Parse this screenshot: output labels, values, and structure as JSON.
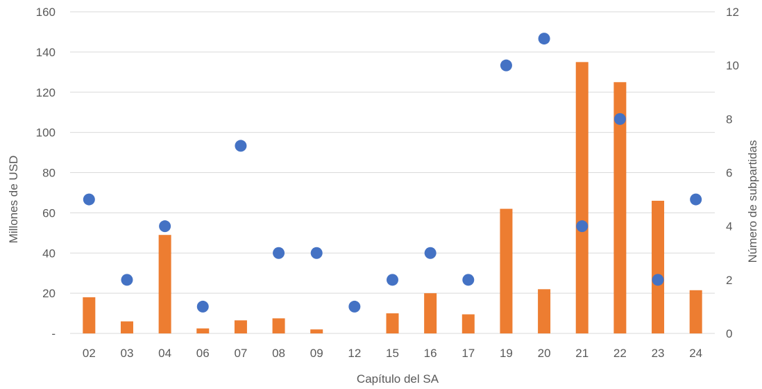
{
  "chart_data": {
    "type": "bar",
    "categories": [
      "02",
      "03",
      "04",
      "06",
      "07",
      "08",
      "09",
      "12",
      "15",
      "16",
      "17",
      "19",
      "20",
      "21",
      "22",
      "23",
      "24"
    ],
    "series": [
      {
        "type": "bar",
        "axis": "left",
        "color": "#ED7D31",
        "values": [
          18,
          6,
          49,
          2.5,
          6.5,
          7.5,
          2,
          0,
          10,
          20,
          9.5,
          62,
          22,
          135,
          125,
          66,
          21.5
        ]
      },
      {
        "type": "scatter",
        "axis": "right",
        "color": "#4472C4",
        "values": [
          5,
          2,
          4,
          1,
          7,
          3,
          3,
          1,
          2,
          3,
          2,
          10,
          11,
          4,
          8,
          2,
          5
        ]
      }
    ],
    "xlabel": "Capítulo del SA",
    "ylabel": "Millones de USD",
    "y2label": "Número de subpartidas",
    "ylim": [
      0,
      160
    ],
    "y2lim": [
      0,
      12
    ],
    "yticks": [
      "-",
      "20",
      "40",
      "60",
      "80",
      "100",
      "120",
      "140",
      "160"
    ],
    "y2ticks": [
      "0",
      "2",
      "4",
      "6",
      "8",
      "10",
      "12"
    ],
    "grid": true,
    "legend": "none"
  }
}
